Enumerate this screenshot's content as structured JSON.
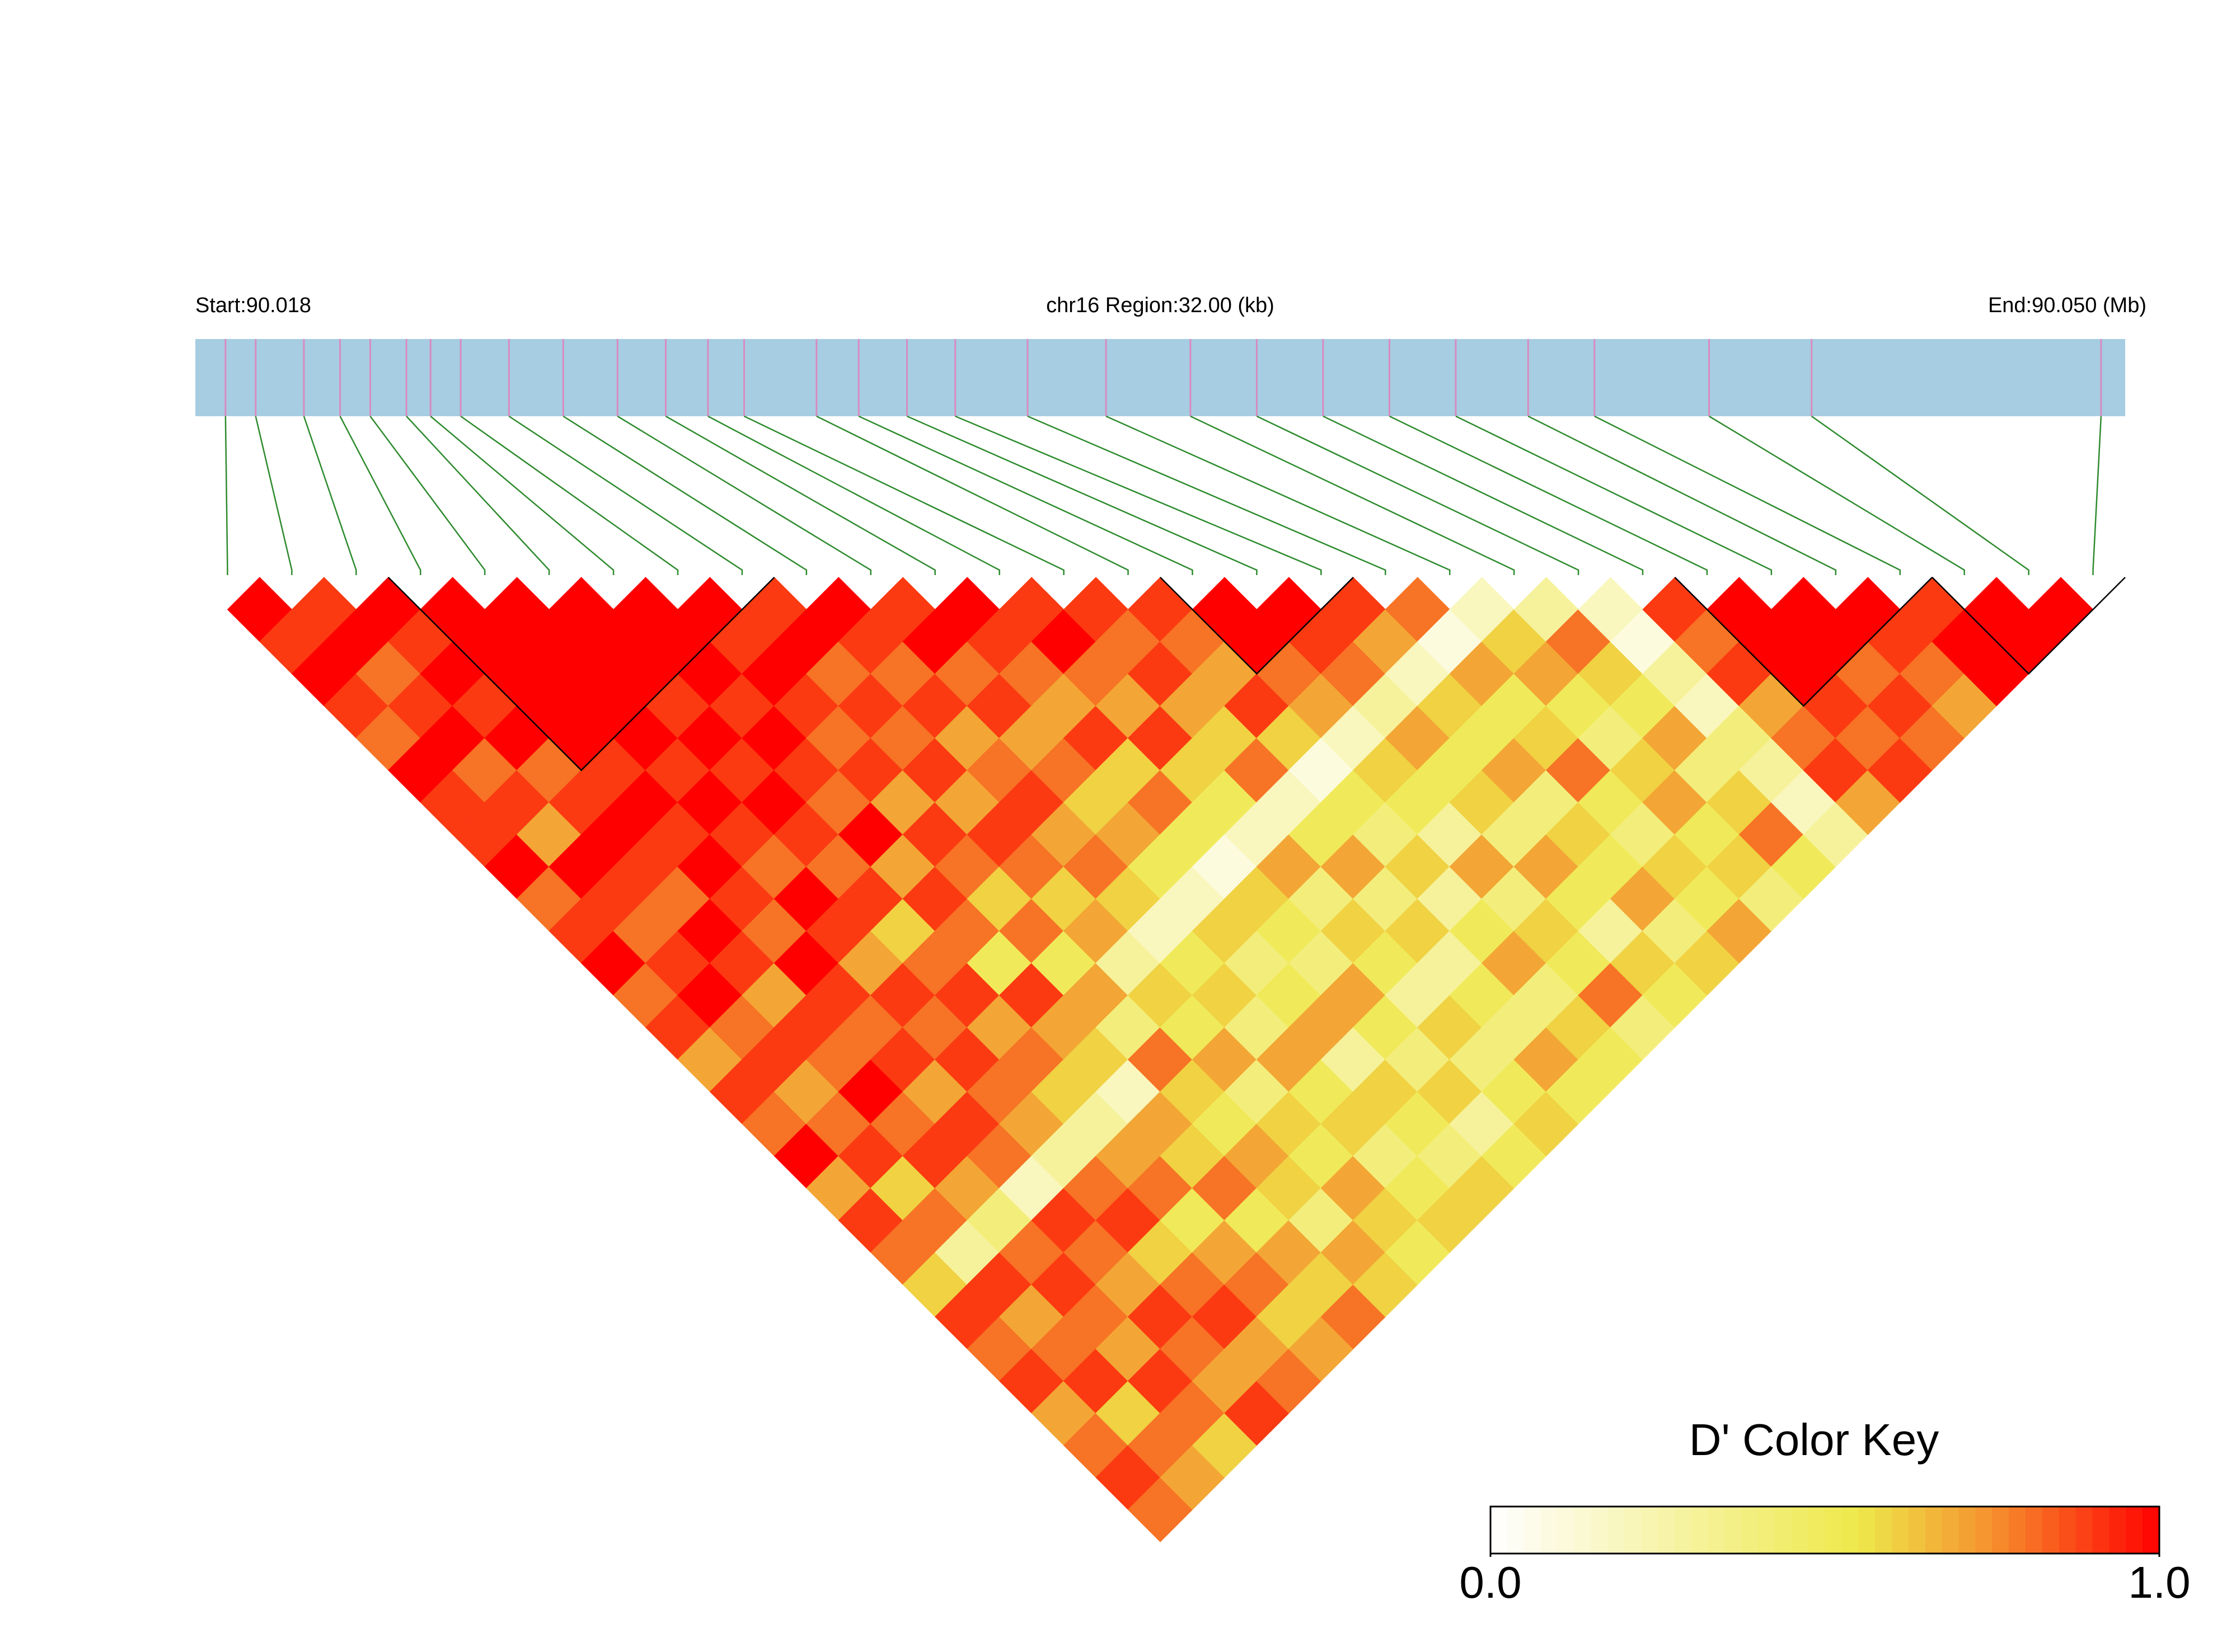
{
  "chart_data": {
    "type": "ld_heatmap",
    "start_label": "Start:90.018",
    "title": "chr16 Region:32.00 (kb)",
    "end_label": "End:90.050 (Mb)",
    "xlim": [
      90.018,
      90.05
    ],
    "positions": [
      90.0185,
      90.019,
      90.0198,
      90.0204,
      90.0209,
      90.0215,
      90.0219,
      90.0224,
      90.0232,
      90.0241,
      90.025,
      90.0258,
      90.0265,
      90.0271,
      90.0283,
      90.029,
      90.0298,
      90.0306,
      90.0318,
      90.0331,
      90.0345,
      90.0356,
      90.0367,
      90.0378,
      90.0389,
      90.0401,
      90.0412,
      90.0431,
      90.0448,
      90.0496
    ],
    "bar_color": "#a6cde2",
    "snp_color": "#d98bc0",
    "connector_color": "#2e8b2e",
    "ld": [
      [
        1,
        0.9,
        1,
        0.9,
        0.8,
        1,
        0.9,
        0.9,
        1,
        0.8,
        0.9,
        1,
        0.8,
        0.9,
        0.7,
        0.9,
        0.8,
        1,
        0.7,
        0.9,
        0.8,
        0.6,
        0.9,
        0.8,
        0.9,
        0.7,
        0.8,
        0.9,
        0.8
      ],
      [
        0.9,
        1,
        0.8,
        0.9,
        1,
        0.8,
        0.9,
        0.7,
        1,
        0.9,
        0.8,
        0.9,
        1,
        0.8,
        0.9,
        0.7,
        0.8,
        0.9,
        0.6,
        0.8,
        0.3,
        0.9,
        0.7,
        0.8,
        0.9,
        0.6,
        0.8,
        0.7
      ],
      [
        1,
        0.9,
        1,
        0.9,
        1,
        0.8,
        0.9,
        1,
        0.9,
        0.8,
        1,
        0.9,
        0.7,
        0.9,
        0.8,
        1,
        0.8,
        0.9,
        0.7,
        0.4,
        0.8,
        0.9,
        0.8,
        0.7,
        0.9,
        0.8,
        0.6
      ],
      [
        1,
        1,
        1,
        1,
        1,
        0.9,
        1,
        0.9,
        1,
        0.9,
        0.8,
        1,
        0.9,
        0.8,
        0.9,
        0.7,
        0.9,
        0.8,
        0.2,
        0.9,
        0.8,
        0.7,
        0.9,
        0.8,
        0.7,
        0.9
      ],
      [
        1,
        1,
        1,
        1,
        1,
        0.9,
        1,
        0.9,
        0.8,
        1,
        0.9,
        0.7,
        0.9,
        0.8,
        0.9,
        0.8,
        0.7,
        0.3,
        0.8,
        0.9,
        0.6,
        0.8,
        0.9,
        0.7,
        0.8
      ],
      [
        1,
        1,
        1,
        0.9,
        1,
        0.9,
        1,
        0.9,
        0.8,
        0.9,
        0.6,
        0.8,
        0.9,
        0.7,
        0.8,
        0.6,
        0.3,
        0.7,
        0.8,
        0.5,
        0.7,
        0.8,
        0.6,
        0.7
      ],
      [
        1,
        1,
        1,
        0.9,
        1,
        0.9,
        0.8,
        1,
        0.7,
        0.9,
        0.8,
        0.5,
        0.9,
        0.7,
        0.6,
        0.2,
        0.7,
        0.6,
        0.8,
        0.5,
        0.7,
        0.6,
        0.8
      ],
      [
        1,
        0.9,
        1,
        0.9,
        0.8,
        0.9,
        0.7,
        0.9,
        0.8,
        0.6,
        0.8,
        0.5,
        0.7,
        0.4,
        0.8,
        0.6,
        0.5,
        0.7,
        0.6,
        0.4,
        0.7,
        0.6
      ],
      [
        0.9,
        1,
        0.8,
        0.9,
        0.8,
        0.9,
        0.7,
        0.9,
        0.8,
        0.6,
        0.7,
        0.3,
        0.6,
        0.5,
        0.7,
        0.4,
        0.6,
        0.5,
        0.7,
        0.6,
        0.5
      ],
      [
        1,
        0.9,
        0.8,
        0.9,
        0.7,
        0.8,
        0.9,
        0.7,
        0.8,
        0.6,
        0.2,
        0.5,
        0.6,
        0.4,
        0.7,
        0.5,
        0.6,
        0.4,
        0.5,
        0.6
      ],
      [
        0.9,
        1,
        0.8,
        0.9,
        0.7,
        0.8,
        0.6,
        0.7,
        0.5,
        0.2,
        0.6,
        0.4,
        0.5,
        0.7,
        0.3,
        0.6,
        0.5,
        0.4,
        0.6
      ],
      [
        1,
        0.9,
        0.8,
        0.7,
        0.9,
        0.6,
        0.8,
        0.5,
        0.1,
        0.6,
        0.5,
        0.4,
        0.7,
        0.5,
        0.4,
        0.6,
        0.3,
        0.5
      ],
      [
        0.9,
        1,
        0.8,
        0.7,
        0.9,
        0.6,
        0.5,
        0.2,
        0.7,
        0.4,
        0.6,
        0.5,
        0.3,
        0.6,
        0.4,
        0.5,
        0.6
      ],
      [
        0.9,
        0.8,
        0.9,
        0.7,
        0.6,
        0.8,
        0.2,
        0.5,
        0.7,
        0.4,
        0.6,
        0.3,
        0.5,
        0.4,
        0.7,
        0.5
      ],
      [
        0.9,
        0.8,
        0.7,
        0.9,
        0.6,
        0.1,
        0.5,
        0.4,
        0.6,
        0.3,
        0.5,
        0.7,
        0.4,
        0.6,
        0.5
      ],
      [
        1,
        1,
        0.8,
        0.7,
        0.2,
        0.6,
        0.5,
        0.3,
        0.7,
        0.4,
        0.6,
        0.5,
        0.8,
        0.4
      ],
      [
        1,
        0.9,
        0.8,
        0.3,
        0.7,
        0.5,
        0.6,
        0.4,
        0.7,
        0.5,
        0.3,
        0.6,
        0.5
      ],
      [
        0.9,
        0.7,
        0.2,
        0.6,
        0.5,
        0.7,
        0.4,
        0.6,
        0.5,
        0.7,
        0.4,
        0.6
      ],
      [
        0.8,
        0.1,
        0.7,
        0.5,
        0.6,
        0.8,
        0.5,
        0.4,
        0.6,
        0.5,
        0.7
      ],
      [
        0.2,
        0.6,
        0.7,
        0.5,
        0.4,
        0.6,
        0.7,
        0.5,
        0.6,
        0.4
      ],
      [
        0.3,
        0.8,
        0.6,
        0.5,
        0.7,
        0.4,
        0.6,
        0.8,
        0.5
      ],
      [
        0.2,
        0.1,
        0.3,
        0.2,
        0.4,
        0.3,
        0.2,
        0.3
      ],
      [
        0.9,
        0.8,
        0.9,
        0.7,
        0.8,
        0.9,
        0.7
      ],
      [
        1,
        1,
        1,
        0.9,
        0.8,
        0.9
      ],
      [
        1,
        1,
        0.8,
        0.9,
        0.8
      ],
      [
        1,
        0.9,
        0.8,
        0.7
      ],
      [
        0.9,
        1,
        1
      ],
      [
        1,
        1
      ],
      [
        1
      ]
    ],
    "blocks": [
      [
        3,
        8
      ],
      [
        15,
        17
      ],
      [
        23,
        26
      ],
      [
        27,
        29
      ]
    ],
    "color_stops": [
      [
        0,
        "#ffffff"
      ],
      [
        0.55,
        "#eee84a"
      ],
      [
        0.75,
        "#f5902e"
      ],
      [
        1,
        "#ff0000"
      ]
    ],
    "key_title": "D' Color Key",
    "key_lim": [
      0,
      1
    ],
    "key_ticks": [
      {
        "value": 0,
        "label": "0.0"
      },
      {
        "value": 1,
        "label": "1.0"
      }
    ]
  }
}
